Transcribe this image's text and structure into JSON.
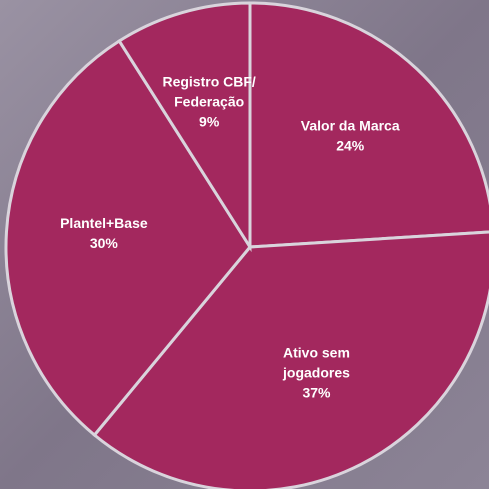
{
  "chart_data": {
    "type": "pie",
    "categories": [
      "Valor da Marca",
      "Ativo sem\njogadores",
      "Plantel+Base",
      "Registro CBF/\nFederação"
    ],
    "values": [
      24,
      37,
      30,
      9
    ],
    "value_labels": [
      "24%",
      "37%",
      "30%",
      "9%"
    ],
    "color": "#a3285e"
  }
}
